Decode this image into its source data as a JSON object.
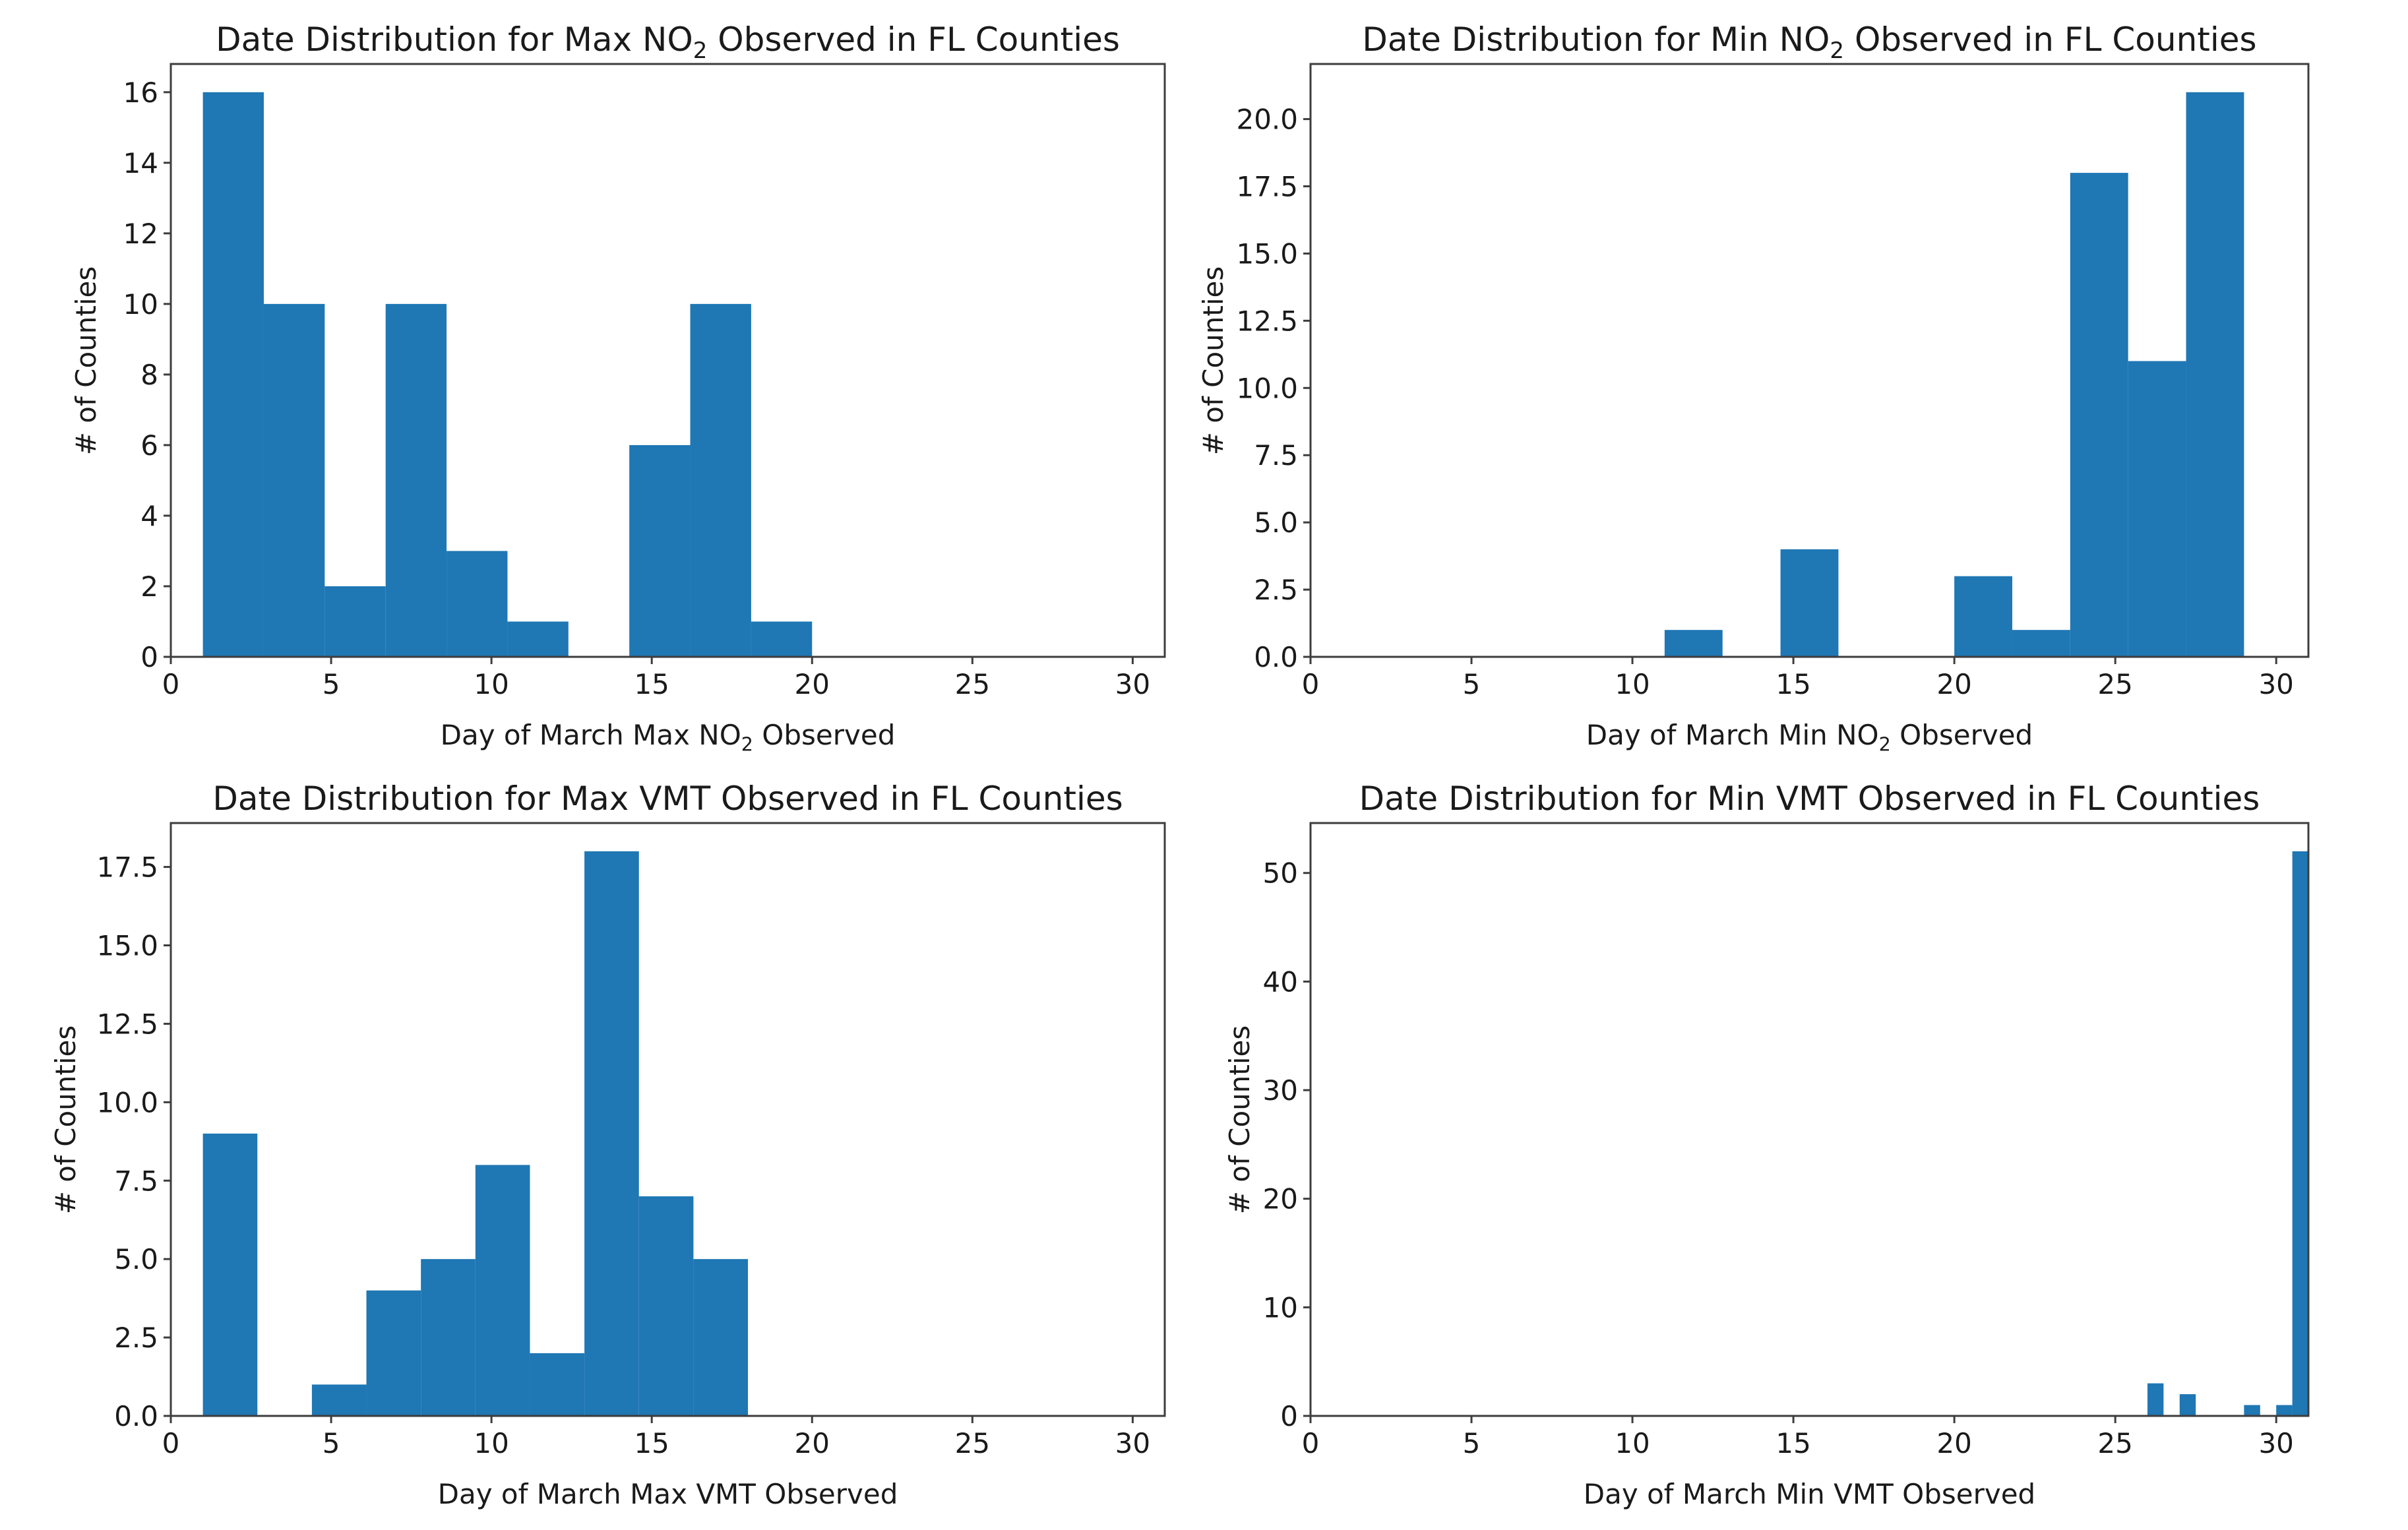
{
  "figure_background": "#ffffff",
  "chart_data": [
    {
      "type": "bar",
      "subtype": "histogram",
      "title": "Date Distribution for Max NO₂ Observed in FL Counties",
      "title_parts": {
        "pre": "Date Distribution for Max NO",
        "sub": "2",
        "post": " Observed in FL Counties"
      },
      "xlabel": "Day of March Max NO₂ Observed",
      "xlabel_parts": {
        "pre": "Day of March Max NO",
        "sub": "2",
        "post": " Observed"
      },
      "ylabel": "# of Counties",
      "bin_edges": [
        1.0,
        2.9,
        4.8,
        6.7,
        8.6,
        10.5,
        12.4,
        14.3,
        16.2,
        18.1,
        20.0
      ],
      "counts": [
        16,
        10,
        2,
        10,
        3,
        1,
        0,
        6,
        10,
        1
      ],
      "xlim": [
        0,
        31
      ],
      "ylim": [
        0,
        16.8
      ],
      "xticks": [
        0,
        5,
        10,
        15,
        20,
        25,
        30
      ],
      "xtick_labels": [
        "0",
        "5",
        "10",
        "15",
        "20",
        "25",
        "30"
      ],
      "yticks": [
        0,
        2,
        4,
        6,
        8,
        10,
        12,
        14,
        16
      ],
      "ytick_labels": [
        "0",
        "2",
        "4",
        "6",
        "8",
        "10",
        "12",
        "14",
        "16"
      ],
      "grid": false,
      "legend": false,
      "bar_color": "#1f77b4"
    },
    {
      "type": "bar",
      "subtype": "histogram",
      "title": "Date Distribution for Min NO₂ Observed in FL Counties",
      "title_parts": {
        "pre": "Date Distribution for Min NO",
        "sub": "2",
        "post": " Observed in FL Counties"
      },
      "xlabel": "Day of March Min NO₂ Observed",
      "xlabel_parts": {
        "pre": "Day of March Min NO",
        "sub": "2",
        "post": " Observed"
      },
      "ylabel": "# of Counties",
      "bin_edges": [
        11.0,
        12.8,
        14.6,
        16.4,
        18.2,
        20.0,
        21.8,
        23.6,
        25.4,
        27.2,
        29.0
      ],
      "counts": [
        1,
        0,
        4,
        0,
        0,
        3,
        1,
        18,
        11,
        21
      ],
      "xlim": [
        0,
        31
      ],
      "ylim": [
        0,
        22.05
      ],
      "xticks": [
        0,
        5,
        10,
        15,
        20,
        25,
        30
      ],
      "xtick_labels": [
        "0",
        "5",
        "10",
        "15",
        "20",
        "25",
        "30"
      ],
      "yticks": [
        0,
        2.5,
        5,
        7.5,
        10,
        12.5,
        15,
        17.5,
        20
      ],
      "ytick_labels": [
        "0.0",
        "2.5",
        "5.0",
        "7.5",
        "10.0",
        "12.5",
        "15.0",
        "17.5",
        "20.0"
      ],
      "grid": false,
      "legend": false,
      "bar_color": "#1f77b4"
    },
    {
      "type": "bar",
      "subtype": "histogram",
      "title": "Date Distribution for Max VMT Observed in FL Counties",
      "title_parts": {
        "pre": "Date Distribution for Max VMT Observed in FL Counties",
        "sub": "",
        "post": ""
      },
      "xlabel": "Day of March Max VMT Observed",
      "xlabel_parts": {
        "pre": "Day of March Max VMT Observed",
        "sub": "",
        "post": ""
      },
      "ylabel": "# of Counties",
      "bin_edges": [
        1.0,
        2.7,
        4.4,
        6.1,
        7.8,
        9.5,
        11.2,
        12.9,
        14.6,
        16.3,
        18.0
      ],
      "counts": [
        9,
        0,
        1,
        4,
        5,
        8,
        2,
        18,
        7,
        5
      ],
      "xlim": [
        0,
        31
      ],
      "ylim": [
        0,
        18.9
      ],
      "xticks": [
        0,
        5,
        10,
        15,
        20,
        25,
        30
      ],
      "xtick_labels": [
        "0",
        "5",
        "10",
        "15",
        "20",
        "25",
        "30"
      ],
      "yticks": [
        0,
        2.5,
        5,
        7.5,
        10,
        12.5,
        15,
        17.5
      ],
      "ytick_labels": [
        "0.0",
        "2.5",
        "5.0",
        "7.5",
        "10.0",
        "12.5",
        "15.0",
        "17.5"
      ],
      "grid": false,
      "legend": false,
      "bar_color": "#1f77b4"
    },
    {
      "type": "bar",
      "subtype": "histogram",
      "title": "Date Distribution for Min VMT Observed in FL Counties",
      "title_parts": {
        "pre": "Date Distribution for Min VMT Observed in FL Counties",
        "sub": "",
        "post": ""
      },
      "xlabel": "Day of March Min VMT Observed",
      "xlabel_parts": {
        "pre": "Day of March Min VMT Observed",
        "sub": "",
        "post": ""
      },
      "ylabel": "# of Counties",
      "bin_edges": [
        26.0,
        26.5,
        27.0,
        27.5,
        28.0,
        28.5,
        29.0,
        29.5,
        30.0,
        30.5,
        31.0
      ],
      "counts": [
        3,
        0,
        2,
        0,
        0,
        0,
        1,
        0,
        1,
        52
      ],
      "xlim": [
        0,
        31
      ],
      "ylim": [
        0,
        54.6
      ],
      "xticks": [
        0,
        5,
        10,
        15,
        20,
        25,
        30
      ],
      "xtick_labels": [
        "0",
        "5",
        "10",
        "15",
        "20",
        "25",
        "30"
      ],
      "yticks": [
        0,
        10,
        20,
        30,
        40,
        50
      ],
      "ytick_labels": [
        "0",
        "10",
        "20",
        "30",
        "40",
        "50"
      ],
      "grid": false,
      "legend": false,
      "bar_color": "#1f77b4"
    }
  ],
  "style": {
    "bar_color": "#1f77b4",
    "axis_color": "#3d3d3d",
    "text_color": "#1a1a1a"
  }
}
